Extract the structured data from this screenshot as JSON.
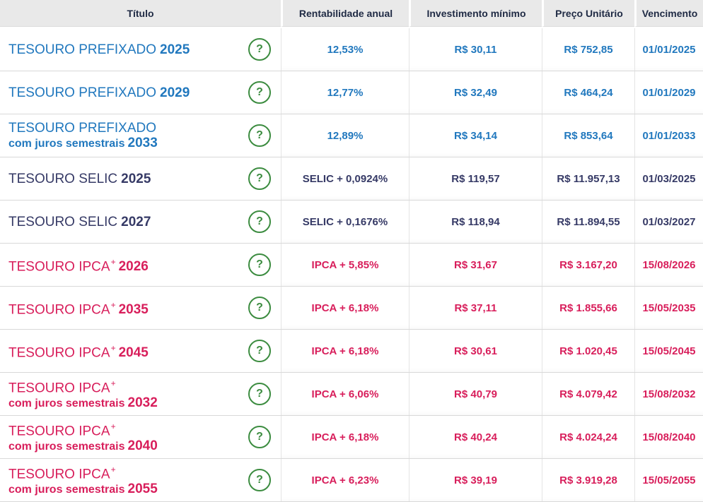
{
  "colors": {
    "prefixado_blue": "#2178be",
    "selic_navy": "#363a66",
    "ipca_crimson": "#d81e5b",
    "help_green": "#3c8c40",
    "header_bg": "#e9e9e9",
    "header_text": "#1f2a44"
  },
  "table": {
    "columns": [
      "Título",
      "Rentabilidade anual",
      "Investimento mínimo",
      "Preço Unitário",
      "Vencimento"
    ],
    "help_icon": "?",
    "rows": [
      {
        "title": "TESOURO PREFIXADO",
        "year": "2025",
        "theme": "blue",
        "rate": "12,53%",
        "min_investment": "R$ 30,11",
        "unit_price": "R$ 752,85",
        "maturity": "01/01/2025"
      },
      {
        "title": "TESOURO PREFIXADO",
        "year": "2029",
        "theme": "blue",
        "rate": "12,77%",
        "min_investment": "R$ 32,49",
        "unit_price": "R$ 464,24",
        "maturity": "01/01/2029"
      },
      {
        "title": "TESOURO PREFIXADO",
        "subtitle": "com juros semestrais",
        "year": "2033",
        "theme": "blue",
        "rate": "12,89%",
        "min_investment": "R$ 34,14",
        "unit_price": "R$ 853,64",
        "maturity": "01/01/2033"
      },
      {
        "title": "TESOURO SELIC",
        "year": "2025",
        "theme": "navy",
        "rate": "SELIC + 0,0924%",
        "min_investment": "R$ 119,57",
        "unit_price": "R$ 11.957,13",
        "maturity": "01/03/2025"
      },
      {
        "title": "TESOURO SELIC",
        "year": "2027",
        "theme": "navy",
        "rate": "SELIC + 0,1676%",
        "min_investment": "R$ 118,94",
        "unit_price": "R$ 11.894,55",
        "maturity": "01/03/2027"
      },
      {
        "title": "TESOURO IPCA",
        "sup": "+",
        "year": "2026",
        "theme": "crimson",
        "rate": "IPCA + 5,85%",
        "min_investment": "R$ 31,67",
        "unit_price": "R$ 3.167,20",
        "maturity": "15/08/2026"
      },
      {
        "title": "TESOURO IPCA",
        "sup": "+",
        "year": "2035",
        "theme": "crimson",
        "rate": "IPCA + 6,18%",
        "min_investment": "R$ 37,11",
        "unit_price": "R$ 1.855,66",
        "maturity": "15/05/2035"
      },
      {
        "title": "TESOURO IPCA",
        "sup": "+",
        "year": "2045",
        "theme": "crimson",
        "rate": "IPCA + 6,18%",
        "min_investment": "R$ 30,61",
        "unit_price": "R$ 1.020,45",
        "maturity": "15/05/2045"
      },
      {
        "title": "TESOURO IPCA",
        "sup": "+",
        "subtitle": "com juros semestrais",
        "year": "2032",
        "theme": "crimson",
        "rate": "IPCA + 6,06%",
        "min_investment": "R$ 40,79",
        "unit_price": "R$ 4.079,42",
        "maturity": "15/08/2032"
      },
      {
        "title": "TESOURO IPCA",
        "sup": "+",
        "subtitle": "com juros semestrais",
        "year": "2040",
        "theme": "crimson",
        "rate": "IPCA + 6,18%",
        "min_investment": "R$ 40,24",
        "unit_price": "R$ 4.024,24",
        "maturity": "15/08/2040"
      },
      {
        "title": "TESOURO IPCA",
        "sup": "+",
        "subtitle": "com juros semestrais",
        "year": "2055",
        "theme": "crimson",
        "rate": "IPCA + 6,23%",
        "min_investment": "R$ 39,19",
        "unit_price": "R$ 3.919,28",
        "maturity": "15/05/2055"
      }
    ]
  }
}
